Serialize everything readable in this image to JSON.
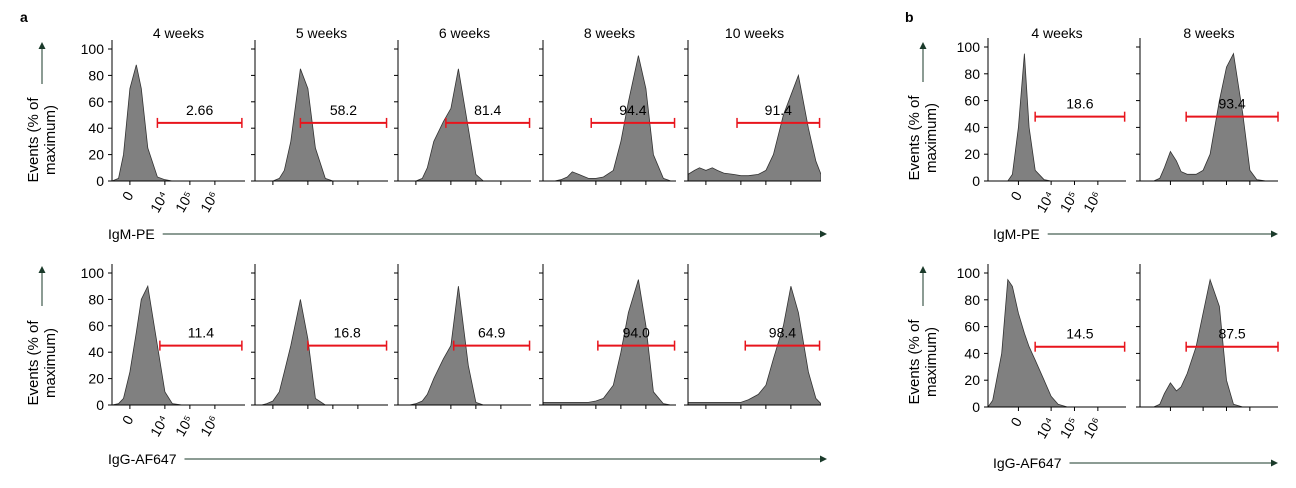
{
  "x": [
    -8000,
    -5000,
    -2000,
    -1000,
    -500,
    0,
    500,
    1000,
    2000,
    5000,
    10000,
    20000,
    50000,
    100000,
    200000,
    500000,
    1000000,
    2000000,
    5000000,
    10000000,
    16000000
  ],
  "panels": [
    {
      "label": "a",
      "titles": [
        "4 weeks",
        "5 weeks",
        "6 weeks",
        "8 weeks",
        "10 weeks"
      ],
      "xlim": [
        -2000,
        16000000
      ],
      "ylim": [
        0,
        100
      ],
      "yticks": [
        0,
        20,
        40,
        60,
        80,
        100
      ],
      "xticks": [
        0,
        {
          "value": 10000,
          "label": "10⁴"
        },
        {
          "value": 100000,
          "label": "10⁵"
        },
        {
          "value": 1000000,
          "label": "10⁶"
        }
      ],
      "color": "#808080",
      "gate_color": "#e8141c",
      "rows": [
        {
          "x_label": "IgM-PE",
          "y_label": "Events (% of maximum)",
          "charts": [
            {
              "type": "area",
              "values": [
                0,
                0,
                0,
                2,
                20,
                70,
                88,
                70,
                25,
                3,
                1,
                0,
                0,
                0,
                0,
                0,
                0,
                0,
                0,
                0,
                0
              ],
              "gate_x": [
                5000,
                12000000
              ],
              "gate_y": 44,
              "gate_label": "2.66"
            },
            {
              "type": "area",
              "values": [
                0,
                0,
                0,
                0,
                0,
                0,
                2,
                8,
                30,
                85,
                70,
                25,
                2,
                0,
                0,
                0,
                0,
                0,
                0,
                0,
                0
              ],
              "gate_x": [
                5000,
                14000000
              ],
              "gate_y": 44,
              "gate_label": "58.2"
            },
            {
              "type": "area",
              "values": [
                0,
                0,
                0,
                0,
                0,
                0,
                2,
                10,
                30,
                45,
                55,
                85,
                40,
                5,
                0,
                0,
                0,
                0,
                0,
                0,
                0
              ],
              "gate_x": [
                6300,
                14000000
              ],
              "gate_y": 44,
              "gate_label": "81.4"
            },
            {
              "type": "area",
              "values": [
                0,
                0,
                0,
                0,
                0,
                1,
                3,
                7,
                5,
                2,
                2,
                3,
                8,
                30,
                60,
                95,
                70,
                20,
                2,
                0,
                0
              ],
              "gate_x": [
                6500,
                14000000
              ],
              "gate_y": 44,
              "gate_label": "94.4"
            },
            {
              "type": "area",
              "values": [
                0,
                0,
                5,
                8,
                10,
                8,
                10,
                8,
                6,
                5,
                4,
                4,
                5,
                8,
                20,
                50,
                65,
                80,
                40,
                15,
                5
              ],
              "gate_x": [
                7000,
                14000000
              ],
              "gate_y": 44,
              "gate_label": "91.4"
            }
          ]
        },
        {
          "x_label": "IgG-AF647",
          "y_label": "Events (% of maximum)",
          "charts": [
            {
              "type": "area",
              "values": [
                0,
                0,
                0,
                1,
                5,
                25,
                55,
                80,
                90,
                45,
                10,
                1,
                0,
                0,
                0,
                0,
                0,
                0,
                0,
                0,
                0
              ],
              "gate_x": [
                6300,
                12000000
              ],
              "gate_y": 45,
              "gate_label": "11.4"
            },
            {
              "type": "area",
              "values": [
                0,
                0,
                0,
                0,
                1,
                3,
                10,
                25,
                45,
                80,
                50,
                5,
                0,
                0,
                0,
                0,
                0,
                0,
                0,
                0,
                0
              ],
              "gate_x": [
                10000,
                14000000
              ],
              "gate_y": 45,
              "gate_label": "16.8"
            },
            {
              "type": "area",
              "values": [
                0,
                0,
                0,
                0,
                0,
                1,
                3,
                8,
                20,
                35,
                45,
                90,
                30,
                2,
                0,
                0,
                0,
                0,
                0,
                0,
                0
              ],
              "gate_x": [
                13000,
                14000000
              ],
              "gate_y": 45,
              "gate_label": "64.9"
            },
            {
              "type": "area",
              "values": [
                0,
                0,
                2,
                2,
                2,
                2,
                2,
                2,
                2,
                2,
                3,
                5,
                15,
                40,
                70,
                95,
                60,
                10,
                1,
                0,
                0
              ],
              "gate_x": [
                12000,
                14000000
              ],
              "gate_y": 45,
              "gate_label": "94.0"
            },
            {
              "type": "area",
              "values": [
                0,
                0,
                2,
                2,
                2,
                2,
                2,
                2,
                2,
                2,
                2,
                4,
                8,
                15,
                35,
                60,
                90,
                70,
                25,
                5,
                1
              ],
              "gate_x": [
                15000,
                14000000
              ],
              "gate_y": 45,
              "gate_label": "98.4"
            }
          ]
        }
      ]
    },
    {
      "label": "b",
      "titles": [
        "4 weeks",
        "8 weeks"
      ],
      "xlim": [
        -8000,
        16000000
      ],
      "ylim": [
        0,
        100
      ],
      "yticks": [
        0,
        20,
        40,
        60,
        80,
        100
      ],
      "xticks": [
        0,
        {
          "value": 10000,
          "label": "10⁴"
        },
        {
          "value": 100000,
          "label": "10⁵"
        },
        {
          "value": 1000000,
          "label": "10⁶"
        }
      ],
      "color": "#808080",
      "gate_color": "#e8141c",
      "rows": [
        {
          "x_label": "IgM-PE",
          "y_label": "Events (% of maximum)",
          "charts": [
            {
              "type": "area",
              "values": [
                0,
                0,
                0,
                0,
                5,
                40,
                95,
                40,
                8,
                1,
                0,
                0,
                0,
                0,
                0,
                0,
                0,
                0,
                0,
                0,
                0
              ],
              "gate_x": [
                2000,
                14000000
              ],
              "gate_y": 48,
              "gate_label": "18.6"
            },
            {
              "type": "area",
              "values": [
                0,
                0,
                0,
                2,
                10,
                22,
                15,
                7,
                5,
                5,
                8,
                20,
                60,
                85,
                95,
                50,
                8,
                1,
                0,
                0,
                0
              ],
              "gate_x": [
                1800,
                16000000
              ],
              "gate_y": 48,
              "gate_label": "93.4"
            }
          ]
        },
        {
          "x_label": "IgG-AF647",
          "y_label": "Events (% of maximum)",
          "charts": [
            {
              "type": "area",
              "values": [
                0,
                5,
                40,
                95,
                90,
                70,
                55,
                45,
                35,
                20,
                8,
                2,
                0,
                0,
                0,
                0,
                0,
                0,
                0,
                0,
                0
              ],
              "gate_x": [
                2000,
                14000000
              ],
              "gate_y": 45,
              "gate_label": "14.5"
            },
            {
              "type": "area",
              "values": [
                0,
                0,
                0,
                2,
                10,
                18,
                12,
                15,
                25,
                45,
                70,
                95,
                75,
                20,
                2,
                0,
                0,
                0,
                0,
                0,
                0
              ],
              "gate_x": [
                1800,
                16000000
              ],
              "gate_y": 45,
              "gate_label": "87.5"
            }
          ]
        }
      ]
    }
  ]
}
